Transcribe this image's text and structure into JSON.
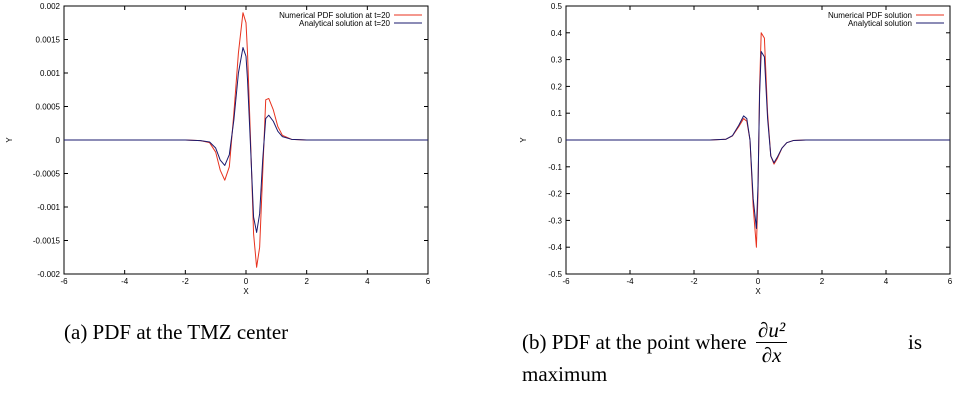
{
  "chart_data": [
    {
      "type": "line",
      "xlabel": "X",
      "ylabel": "Y",
      "xlim": [
        -6,
        6
      ],
      "ylim": [
        -0.002,
        0.002
      ],
      "x_ticks": [
        -6,
        -4,
        -2,
        0,
        2,
        4,
        6
      ],
      "x_tick_labels": [
        "-6",
        "-4",
        "-2",
        "0",
        "2",
        "4",
        "6"
      ],
      "y_ticks": [
        -0.002,
        -0.0015,
        -0.001,
        -0.0005,
        0,
        0.0005,
        0.001,
        0.0015,
        0.002
      ],
      "y_tick_labels": [
        "-0.002",
        "-0.0015",
        "-0.001",
        "-0.0005",
        "0",
        "0.0005",
        "0.001",
        "0.0015",
        "0.002"
      ],
      "grid": false,
      "legend_position": "top-right",
      "series": [
        {
          "name": "Numerical PDF solution at t=20",
          "color": "#e8321e",
          "x": [
            -6,
            -2,
            -1.5,
            -1.2,
            -1.0,
            -0.85,
            -0.7,
            -0.55,
            -0.4,
            -0.25,
            -0.1,
            0,
            0.05,
            0.15,
            0.25,
            0.35,
            0.45,
            0.55,
            0.65,
            0.75,
            0.9,
            1.05,
            1.2,
            1.5,
            2,
            6
          ],
          "y": [
            0,
            0,
            -1e-05,
            -4e-05,
            -0.00018,
            -0.00045,
            -0.0006,
            -0.0004,
            0.0004,
            0.0013,
            0.0019,
            0.00175,
            0.0013,
            0.0,
            -0.0014,
            -0.0019,
            -0.0016,
            -0.0005,
            0.0006,
            0.00062,
            0.00045,
            0.0002,
            7e-05,
            1e-05,
            0,
            0
          ]
        },
        {
          "name": "Analytical solution at t=20",
          "color": "#1a1a6e",
          "x": [
            -6,
            -2,
            -1.5,
            -1.2,
            -1.0,
            -0.85,
            -0.7,
            -0.55,
            -0.4,
            -0.25,
            -0.1,
            0,
            0.05,
            0.15,
            0.25,
            0.35,
            0.45,
            0.55,
            0.65,
            0.75,
            0.9,
            1.05,
            1.2,
            1.5,
            2,
            6
          ],
          "y": [
            0,
            0,
            -1e-05,
            -3e-05,
            -0.00012,
            -0.0003,
            -0.00038,
            -0.00022,
            0.0003,
            0.001,
            0.00138,
            0.00125,
            0.0009,
            -0.0001,
            -0.00115,
            -0.00138,
            -0.0011,
            -0.0003,
            0.00032,
            0.00037,
            0.00028,
            0.00013,
            5e-05,
            1e-05,
            0,
            0
          ]
        }
      ]
    },
    {
      "type": "line",
      "xlabel": "X",
      "ylabel": "Y",
      "xlim": [
        -6,
        6
      ],
      "ylim": [
        -0.5,
        0.5
      ],
      "x_ticks": [
        -6,
        -4,
        -2,
        0,
        2,
        4,
        6
      ],
      "x_tick_labels": [
        "-6",
        "-4",
        "-2",
        "0",
        "2",
        "4",
        "6"
      ],
      "y_ticks": [
        -0.5,
        -0.4,
        -0.3,
        -0.2,
        -0.1,
        0,
        0.1,
        0.2,
        0.3,
        0.4,
        0.5
      ],
      "y_tick_labels": [
        "-0.5",
        "-0.4",
        "-0.3",
        "-0.2",
        "-0.1",
        "0",
        "0.1",
        "0.2",
        "0.3",
        "0.4",
        "0.5"
      ],
      "grid": false,
      "legend_position": "top-right",
      "series": [
        {
          "name": "Numerical PDF solution",
          "color": "#e8321e",
          "x": [
            -6,
            -1.5,
            -1.0,
            -0.8,
            -0.6,
            -0.45,
            -0.35,
            -0.25,
            -0.15,
            -0.05,
            0.0,
            0.05,
            0.1,
            0.2,
            0.3,
            0.4,
            0.5,
            0.6,
            0.75,
            0.9,
            1.1,
            1.5,
            6
          ],
          "y": [
            0,
            0,
            0.003,
            0.015,
            0.05,
            0.08,
            0.07,
            0.0,
            -0.25,
            -0.4,
            -0.2,
            0.2,
            0.4,
            0.38,
            0.1,
            -0.06,
            -0.09,
            -0.07,
            -0.03,
            -0.01,
            -0.002,
            0,
            0
          ]
        },
        {
          "name": "Analytical solution",
          "color": "#1a1a6e",
          "x": [
            -6,
            -1.5,
            -1.0,
            -0.8,
            -0.6,
            -0.45,
            -0.35,
            -0.25,
            -0.15,
            -0.05,
            0.0,
            0.05,
            0.1,
            0.2,
            0.3,
            0.4,
            0.5,
            0.6,
            0.75,
            0.9,
            1.1,
            1.5,
            6
          ],
          "y": [
            0,
            0,
            0.003,
            0.016,
            0.055,
            0.09,
            0.08,
            0.0,
            -0.22,
            -0.33,
            -0.17,
            0.17,
            0.33,
            0.31,
            0.08,
            -0.06,
            -0.085,
            -0.065,
            -0.03,
            -0.01,
            -0.002,
            0,
            0
          ]
        }
      ]
    }
  ],
  "captions": {
    "a": "(a)  PDF at the TMZ center",
    "b_line1": "(b)  PDF at the point where",
    "b_frac_num": "∂u²",
    "b_frac_den": "∂x",
    "b_is": "is",
    "b_line2": "maximum"
  }
}
